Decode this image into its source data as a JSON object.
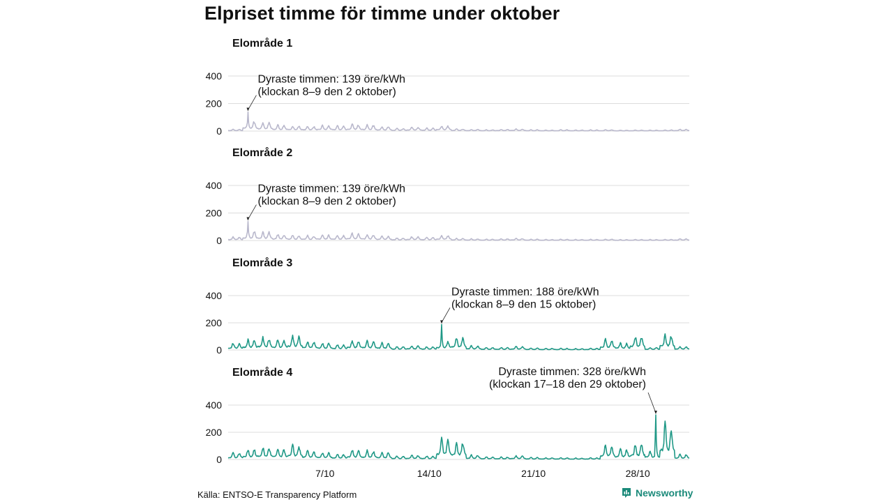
{
  "title": "Elpriset timme för timme under oktober",
  "source": "Källa: ENTSO-E Transparency Platform",
  "brand": "Newsworthy",
  "colors": {
    "grey_series": "#b9b8cc",
    "green_series": "#1f9886",
    "grid": "#dcdcdc",
    "brand": "#1b8a7a"
  },
  "chart_data": [
    {
      "type": "line",
      "title": "Elområde 1",
      "color": "grey",
      "ylim": [
        0,
        400
      ],
      "yticks": [
        0,
        200,
        400
      ],
      "x": "hours of 1–31 October",
      "xticks": [],
      "peak": {
        "day": 2,
        "hour": 8,
        "value": 139
      },
      "annotation": [
        "Dyraste timmen: 139 öre/kWh",
        "(klockan 8–9 den 2 oktober)"
      ],
      "daily_levels": [
        10,
        60,
        50,
        35,
        30,
        28,
        32,
        30,
        38,
        34,
        25,
        15,
        22,
        18,
        30,
        12,
        10,
        8,
        10,
        12,
        8,
        6,
        8,
        6,
        7,
        8,
        5,
        6,
        6,
        7,
        10
      ]
    },
    {
      "type": "line",
      "title": "Elområde 2",
      "color": "grey",
      "ylim": [
        0,
        400
      ],
      "yticks": [
        0,
        200,
        400
      ],
      "xticks": [],
      "peak": {
        "day": 2,
        "hour": 8,
        "value": 139
      },
      "annotation": [
        "Dyraste timmen: 139 öre/kWh",
        "(klockan 8–9 den 2 oktober)"
      ],
      "daily_levels": [
        20,
        55,
        50,
        35,
        30,
        28,
        32,
        30,
        40,
        34,
        25,
        15,
        22,
        18,
        30,
        12,
        10,
        8,
        10,
        12,
        8,
        6,
        8,
        6,
        7,
        8,
        5,
        6,
        6,
        7,
        10
      ]
    },
    {
      "type": "line",
      "title": "Elområde 3",
      "color": "green",
      "ylim": [
        0,
        400
      ],
      "yticks": [
        0,
        200,
        400
      ],
      "xticks": [],
      "peak": {
        "day": 15,
        "hour": 8,
        "value": 188
      },
      "annotation": [
        "Dyraste timmen: 188 öre/kWh",
        "(klockan 8–9 den 15 oktober)"
      ],
      "daily_levels": [
        40,
        60,
        70,
        60,
        80,
        50,
        40,
        30,
        55,
        50,
        40,
        20,
        25,
        20,
        50,
        70,
        25,
        15,
        15,
        20,
        12,
        10,
        10,
        8,
        10,
        60,
        40,
        80,
        15,
        90,
        20
      ]
    },
    {
      "type": "line",
      "title": "Elområde 4",
      "color": "green",
      "ylim": [
        0,
        400
      ],
      "yticks": [
        0,
        200,
        400
      ],
      "xticks": [
        "7/10",
        "14/10",
        "21/10",
        "28/10"
      ],
      "peak": {
        "day": 29,
        "hour": 17,
        "value": 328
      },
      "annotation": [
        "Dyraste timmen: 328 öre/kWh",
        "(klockan 17–18 den 29 oktober)"
      ],
      "daily_levels": [
        40,
        60,
        70,
        60,
        80,
        50,
        40,
        30,
        55,
        50,
        40,
        20,
        25,
        20,
        120,
        100,
        25,
        15,
        15,
        20,
        12,
        10,
        10,
        8,
        10,
        80,
        60,
        90,
        50,
        200,
        30
      ]
    }
  ]
}
